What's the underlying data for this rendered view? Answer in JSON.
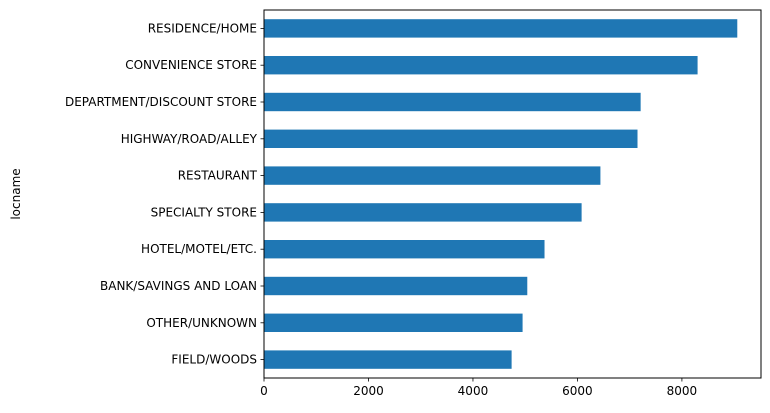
{
  "chart_data": {
    "type": "bar",
    "orientation": "horizontal",
    "categories": [
      "RESIDENCE/HOME",
      "CONVENIENCE STORE",
      "DEPARTMENT/DISCOUNT STORE",
      "HIGHWAY/ROAD/ALLEY",
      "RESTAURANT",
      "SPECIALTY STORE",
      "HOTEL/MOTEL/ETC.",
      "BANK/SAVINGS AND LOAN",
      "OTHER/UNKNOWN",
      "FIELD/WOODS"
    ],
    "values": [
      9060,
      8300,
      7210,
      7150,
      6440,
      6080,
      5370,
      5040,
      4950,
      4740
    ],
    "ylabel": "locname",
    "xlabel": "",
    "xlim": [
      0,
      9514
    ],
    "xticks": [
      0,
      2000,
      4000,
      6000,
      8000
    ],
    "xtick_labels": [
      "0",
      "2000",
      "4000",
      "6000",
      "8000"
    ],
    "grid": false,
    "bar_color": "#1f77b4"
  }
}
